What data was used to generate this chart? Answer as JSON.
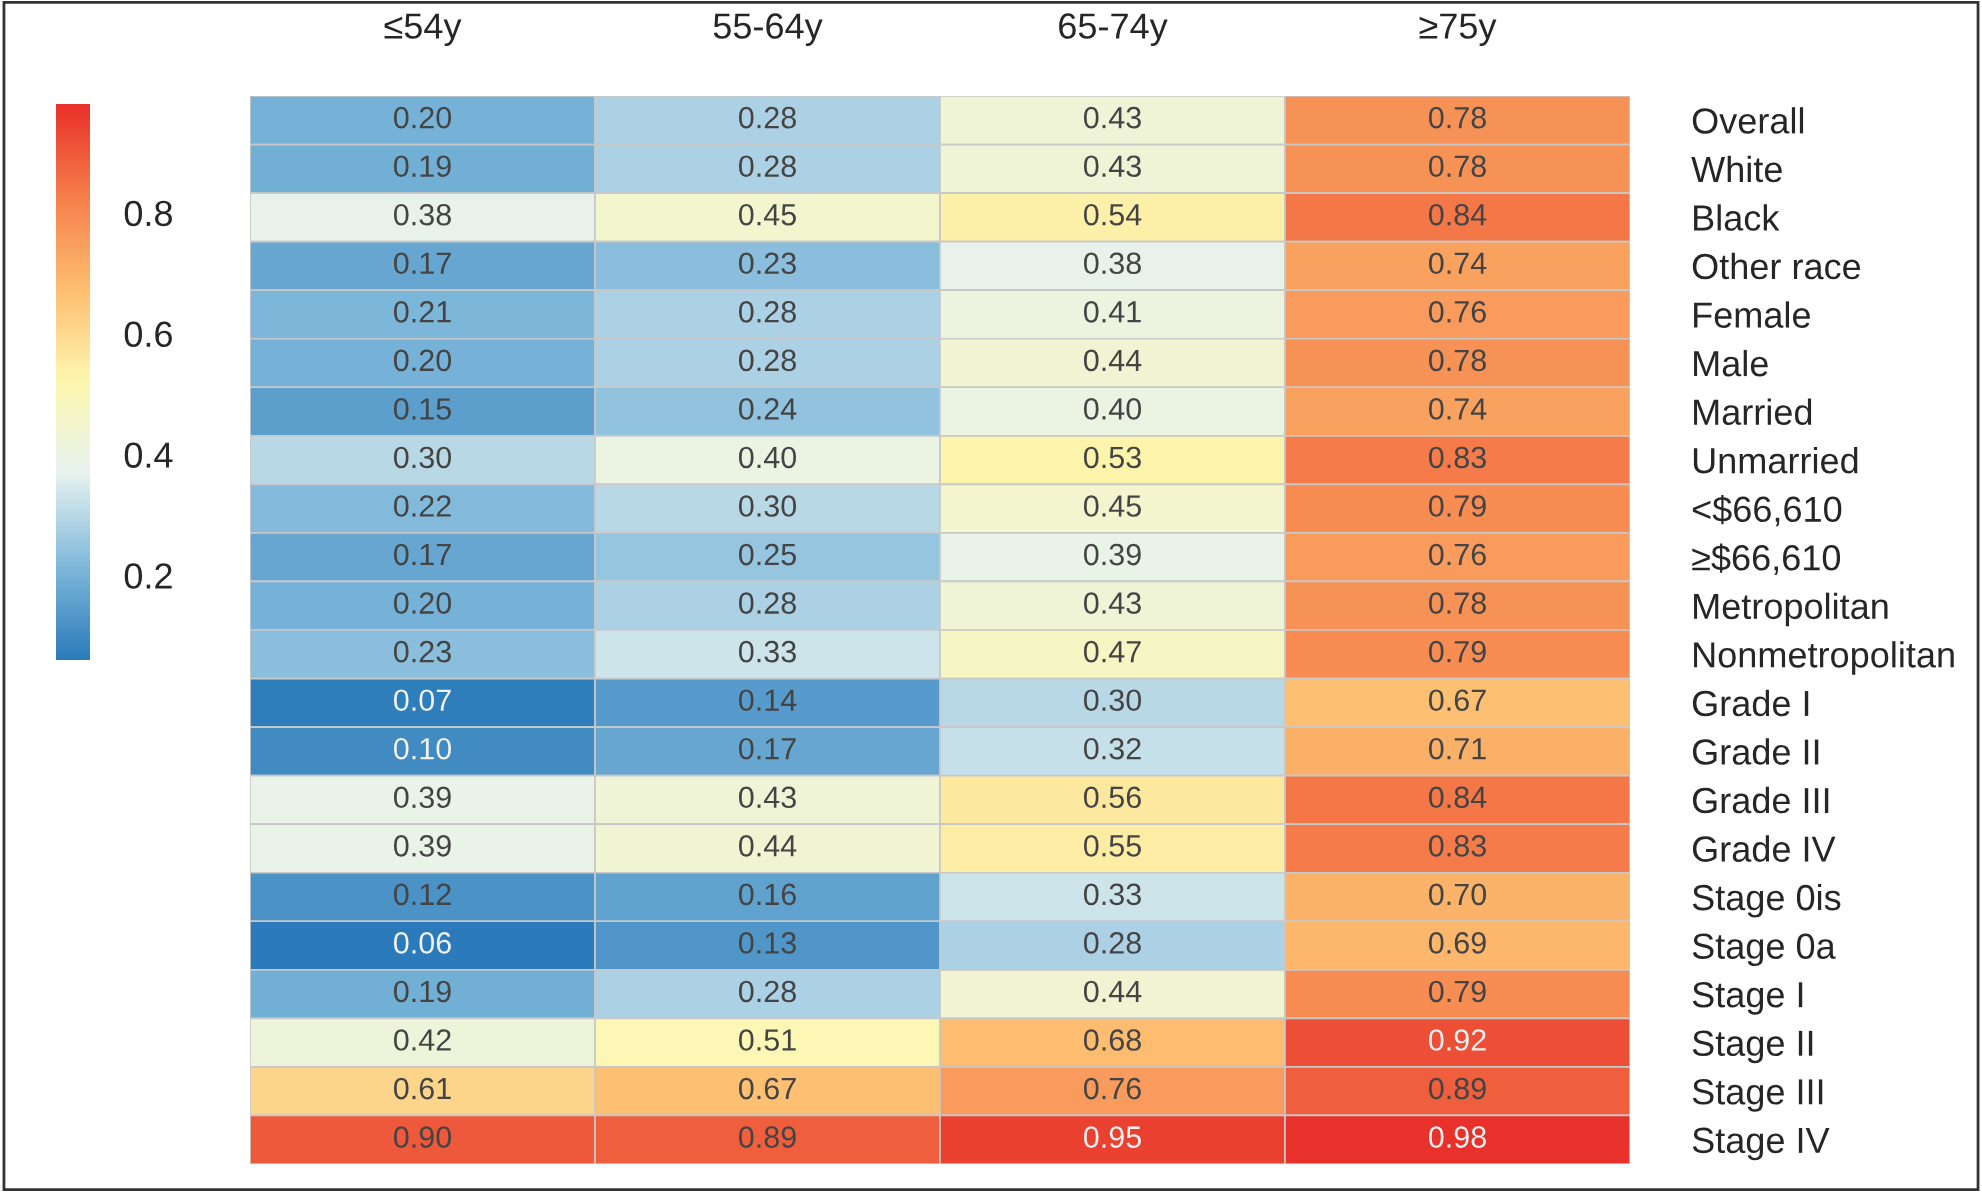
{
  "chart_data": {
    "type": "heatmap",
    "categories": [
      "≤54y",
      "55-64y",
      "65-74y",
      "≥75y"
    ],
    "y_categories": [
      "Overall",
      "White",
      "Black",
      "Other race",
      "Female",
      "Male",
      "Married",
      "Unmarried",
      "<$66,610",
      "≥$66,610",
      "Metropolitan",
      "Nonmetropolitan",
      "Grade I",
      "Grade II",
      "Grade III",
      "Grade IV",
      "Stage 0is",
      "Stage 0a",
      "Stage I",
      "Stage II",
      "Stage III",
      "Stage IV"
    ],
    "cells": [
      [
        0.2,
        0.28,
        0.43,
        0.78
      ],
      [
        0.19,
        0.28,
        0.43,
        0.78
      ],
      [
        0.38,
        0.45,
        0.54,
        0.84
      ],
      [
        0.17,
        0.23,
        0.38,
        0.74
      ],
      [
        0.21,
        0.28,
        0.41,
        0.76
      ],
      [
        0.2,
        0.28,
        0.44,
        0.78
      ],
      [
        0.15,
        0.24,
        0.4,
        0.74
      ],
      [
        0.3,
        0.4,
        0.53,
        0.83
      ],
      [
        0.22,
        0.3,
        0.45,
        0.79
      ],
      [
        0.17,
        0.25,
        0.39,
        0.76
      ],
      [
        0.2,
        0.28,
        0.43,
        0.78
      ],
      [
        0.23,
        0.33,
        0.47,
        0.79
      ],
      [
        0.07,
        0.14,
        0.3,
        0.67
      ],
      [
        0.1,
        0.17,
        0.32,
        0.71
      ],
      [
        0.39,
        0.43,
        0.56,
        0.84
      ],
      [
        0.39,
        0.44,
        0.55,
        0.83
      ],
      [
        0.12,
        0.16,
        0.33,
        0.7
      ],
      [
        0.06,
        0.13,
        0.28,
        0.69
      ],
      [
        0.19,
        0.28,
        0.44,
        0.79
      ],
      [
        0.42,
        0.51,
        0.68,
        0.92
      ],
      [
        0.61,
        0.67,
        0.76,
        0.89
      ],
      [
        0.9,
        0.89,
        0.95,
        0.98
      ]
    ],
    "cell_labels": [
      [
        "0.20",
        "0.28",
        "0.43",
        "0.78"
      ],
      [
        "0.19",
        "0.28",
        "0.43",
        "0.78"
      ],
      [
        "0.38",
        "0.45",
        "0.54",
        "0.84"
      ],
      [
        "0.17",
        "0.23",
        "0.38",
        "0.74"
      ],
      [
        "0.21",
        "0.28",
        "0.41",
        "0.76"
      ],
      [
        "0.20",
        "0.28",
        "0.44",
        "0.78"
      ],
      [
        "0.15",
        "0.24",
        "0.40",
        "0.74"
      ],
      [
        "0.30",
        "0.40",
        "0.53",
        "0.83"
      ],
      [
        "0.22",
        "0.30",
        "0.45",
        "0.79"
      ],
      [
        "0.17",
        "0.25",
        "0.39",
        "0.76"
      ],
      [
        "0.20",
        "0.28",
        "0.43",
        "0.78"
      ],
      [
        "0.23",
        "0.33",
        "0.47",
        "0.79"
      ],
      [
        "0.07",
        "0.14",
        "0.30",
        "0.67"
      ],
      [
        "0.10",
        "0.17",
        "0.32",
        "0.71"
      ],
      [
        "0.39",
        "0.43",
        "0.56",
        "0.84"
      ],
      [
        "0.39",
        "0.44",
        "0.55",
        "0.83"
      ],
      [
        "0.12",
        "0.16",
        "0.33",
        "0.70"
      ],
      [
        "0.06",
        "0.13",
        "0.28",
        "0.69"
      ],
      [
        "0.19",
        "0.28",
        "0.44",
        "0.79"
      ],
      [
        "0.42",
        "0.51",
        "0.68",
        "0.92"
      ],
      [
        "0.61",
        "0.67",
        "0.76",
        "0.89"
      ],
      [
        "0.90",
        "0.89",
        "0.95",
        "0.98"
      ]
    ],
    "clim": [
      0.06,
      0.98
    ],
    "cticks": [
      0.2,
      0.4,
      0.6,
      0.8
    ]
  }
}
